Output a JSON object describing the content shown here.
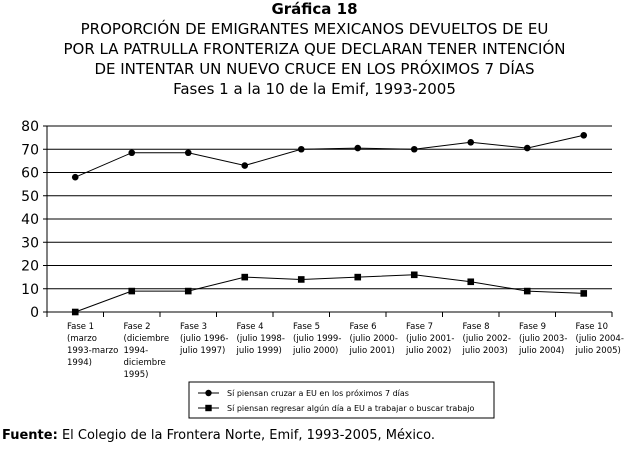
{
  "chart_data": {
    "type": "line",
    "caption": "Gráfica 18",
    "title_lines": [
      "PROPORCIÓN DE EMIGRANTES MEXICANOS DEVUELTOS DE EU",
      "POR LA PATRULLA FRONTERIZA QUE DECLARAN TENER INTENCIÓN",
      "DE INTENTAR UN NUEVO CRUCE EN LOS PRÓXIMOS 7 DÍAS",
      "Fases 1 a la 10 de la Emif, 1993-2005"
    ],
    "ylim": [
      0,
      80
    ],
    "yticks": [
      0,
      10,
      20,
      30,
      40,
      50,
      60,
      70,
      80
    ],
    "grid": true,
    "categories": [
      [
        "Fase 1",
        "(marzo",
        "1993-marzo",
        "1994)"
      ],
      [
        "Fase 2",
        "(diciembre",
        "1994-",
        "diciembre",
        "1995)"
      ],
      [
        "Fase 3",
        "(julio 1996-",
        "julio 1997)"
      ],
      [
        "Fase 4",
        "(julio 1998-",
        "julio 1999)"
      ],
      [
        "Fase 5",
        "(julio 1999-",
        "julio 2000)"
      ],
      [
        "Fase 6",
        "(julio 2000-",
        "julio 2001)"
      ],
      [
        "Fase 7",
        "(julio 2001-",
        "julio 2002)"
      ],
      [
        "Fase 8",
        "(julio 2002-",
        "julio 2003)"
      ],
      [
        "Fase 9",
        "(julio 2003-",
        "julio 2004)"
      ],
      [
        "Fase 10",
        "(julio 2004-",
        "julio 2005)"
      ]
    ],
    "series": [
      {
        "name": "Sí piensan cruzar a EU en los próximos 7 días",
        "marker": "circle",
        "values": [
          58,
          68.5,
          68.5,
          63,
          70,
          70.5,
          70,
          73,
          70.5,
          76
        ]
      },
      {
        "name": "Sí piensan regresar algún día a EU a trabajar o buscar trabajo",
        "marker": "square",
        "values": [
          0,
          9,
          9,
          15,
          14,
          15,
          16,
          13,
          9,
          8
        ]
      }
    ]
  },
  "source": {
    "label": "Fuente:",
    "text": "El Colegio de la Frontera Norte, Emif, 1993-2005, México."
  }
}
